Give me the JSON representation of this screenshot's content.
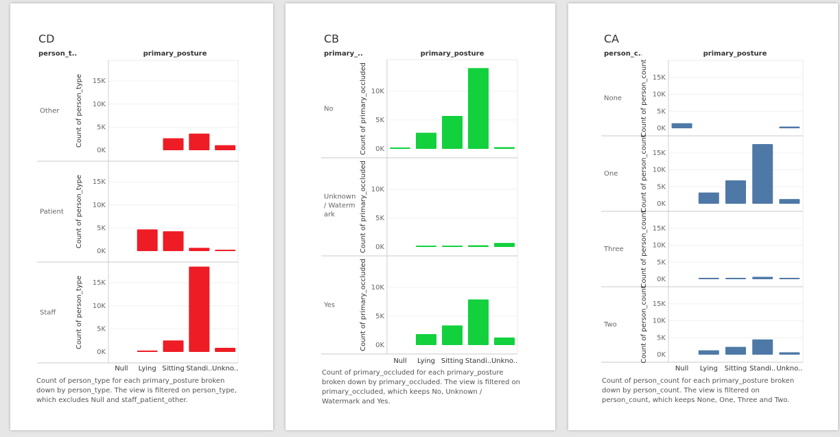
{
  "chart_data": [
    {
      "id": "CD",
      "type": "bar",
      "title": "CD",
      "row_field": "person_t..",
      "col_field": "primary_posture",
      "ylabel": "Count of person_type",
      "categories": [
        "Null",
        "Lying",
        "Sitting",
        "Standi..",
        "Unkno.."
      ],
      "yticks": [
        "0K",
        "5K",
        "10K",
        "15K"
      ],
      "ylim": [
        0,
        18000
      ],
      "bar_color": "#ee1c25",
      "rows": [
        {
          "label": "Other",
          "values": [
            0,
            0,
            2600,
            3600,
            1100
          ]
        },
        {
          "label": "Patient",
          "values": [
            0,
            4700,
            4300,
            700,
            300
          ]
        },
        {
          "label": "Staff",
          "values": [
            0,
            250,
            2500,
            18500,
            900
          ]
        }
      ],
      "caption": "Count of person_type for each primary_posture broken down by person_type. The view is filtered on person_type, which excludes Null and staff_patient_other."
    },
    {
      "id": "CB",
      "type": "bar",
      "title": "CB",
      "row_field": "primary_..",
      "col_field": "primary_posture",
      "ylabel": "Count of primary_occluded",
      "categories": [
        "Null",
        "Lying",
        "Sitting",
        "Standi..",
        "Unkno.."
      ],
      "yticks": [
        "0K",
        "5K",
        "10K"
      ],
      "ylim": [
        0,
        14500
      ],
      "bar_color": "#12d13d",
      "rows": [
        {
          "label": "No",
          "values": [
            200,
            2800,
            5700,
            14000,
            300
          ]
        },
        {
          "label": "Unknown / Watermark",
          "lines": [
            "Unknown",
            "/ Waterm",
            "ark"
          ],
          "values": [
            0,
            200,
            200,
            300,
            700
          ]
        },
        {
          "label": "Yes",
          "values": [
            0,
            1900,
            3400,
            7900,
            1300
          ]
        }
      ],
      "caption": "Count of primary_occluded for each primary_posture broken down by primary_occluded. The view is filtered on primary_occluded, which keeps No, Unknown / Watermark and Yes."
    },
    {
      "id": "CA",
      "type": "bar",
      "title": "CA",
      "row_field": "person_c..",
      "col_field": "primary_posture",
      "ylabel": "Count of person_count",
      "categories": [
        "Null",
        "Lying",
        "Sitting",
        "Standi..",
        "Unkno.."
      ],
      "yticks": [
        "0K",
        "5K",
        "10K",
        "15K"
      ],
      "ylim": [
        0,
        18000
      ],
      "bar_color": "#4e79a7",
      "rows": [
        {
          "label": "None",
          "values": [
            1500,
            0,
            0,
            0,
            500
          ]
        },
        {
          "label": "One",
          "values": [
            0,
            3300,
            6900,
            17600,
            1400
          ]
        },
        {
          "label": "Three",
          "values": [
            0,
            300,
            300,
            700,
            200
          ]
        },
        {
          "label": "Two",
          "values": [
            0,
            1300,
            2300,
            4500,
            700
          ]
        }
      ],
      "caption": "Count of person_count for each primary_posture broken down by person_count. The view is filtered on person_count, which keeps None, One, Three and Two."
    }
  ]
}
